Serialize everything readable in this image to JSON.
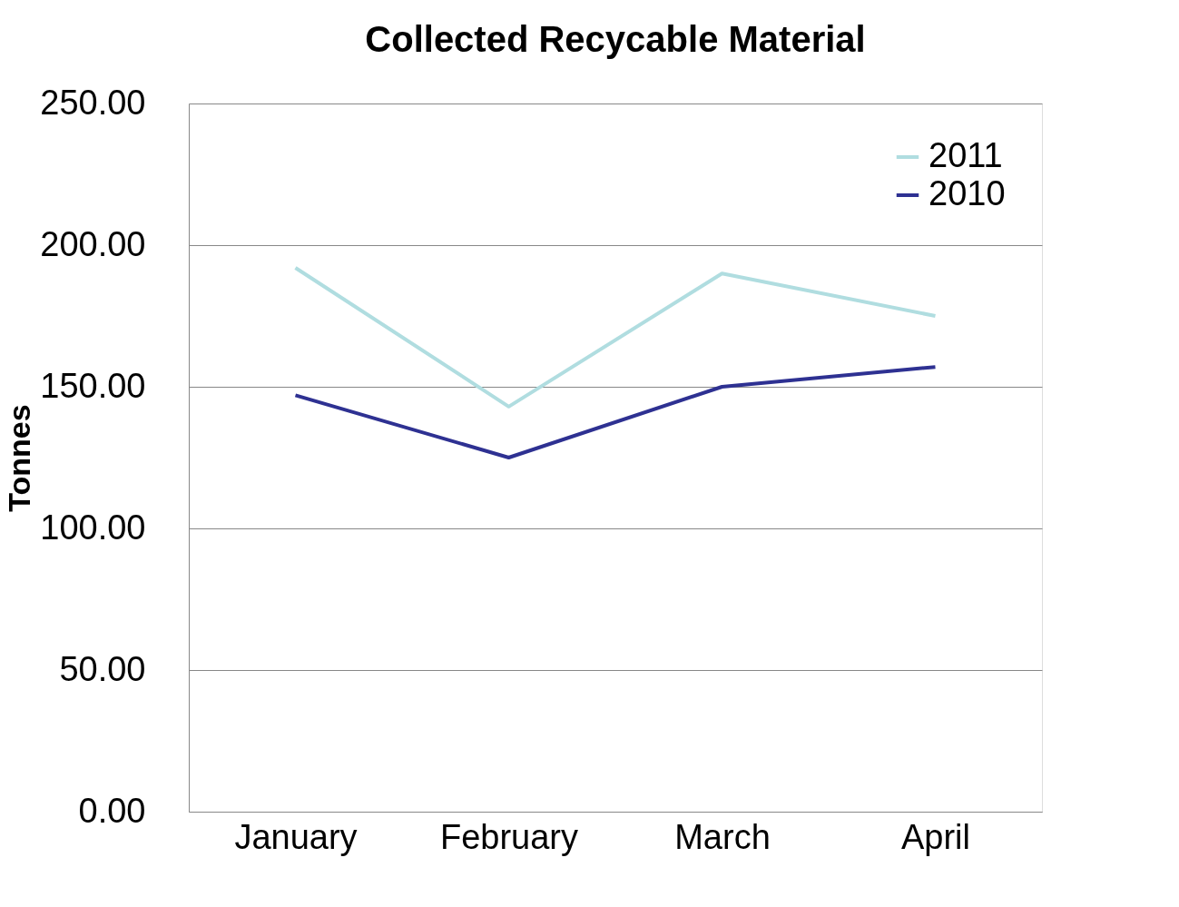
{
  "chart_data": {
    "type": "line",
    "title": "Collected Recycable Material",
    "ylabel": "Tonnes",
    "categories": [
      "January",
      "February",
      "March",
      "April"
    ],
    "series": [
      {
        "name": "2011",
        "color": "#b0dde0",
        "values": [
          192,
          143,
          190,
          175
        ]
      },
      {
        "name": "2010",
        "color": "#2e3192",
        "values": [
          147,
          125,
          150,
          157
        ]
      }
    ],
    "ylim": [
      0,
      250
    ],
    "yticks": [
      {
        "value": 0,
        "label": "0.00"
      },
      {
        "value": 50,
        "label": "50.00"
      },
      {
        "value": 100,
        "label": "100.00"
      },
      {
        "value": 150,
        "label": "150.00"
      },
      {
        "value": 200,
        "label": "200.00"
      },
      {
        "value": 250,
        "label": "250.00"
      }
    ],
    "grid": "y",
    "legend": "top right",
    "marker": "none",
    "line_style": "solid"
  }
}
